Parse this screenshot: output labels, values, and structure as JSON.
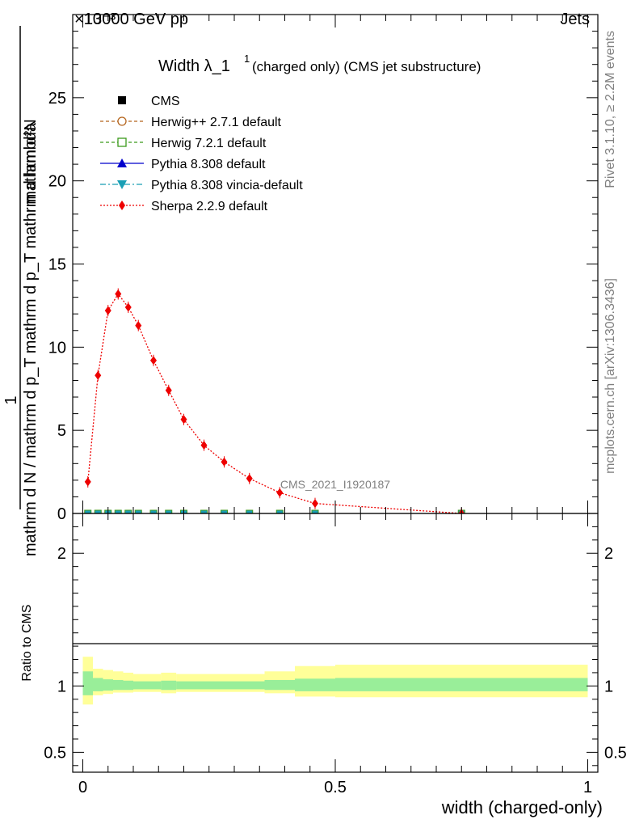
{
  "header": {
    "left": "13000 GeV pp",
    "right": "Jets",
    "exponent": "×10⁻³"
  },
  "side_text": {
    "rivet": "Rivet 3.1.10, ≥ 2.2M events",
    "mcplots": "mcplots.cern.ch [arXiv:1306.3436]"
  },
  "watermark": "CMS_2021_I1920187",
  "chart_data": {
    "type": "line",
    "title": "Width λ_1",
    "title_sup": "1",
    "title_suffix": "(charged only) (CMS jet substructure)",
    "xlabel": "width (charged-only)",
    "ylabel": {
      "numerator": "mathrm d²N",
      "denominator": "mathrm d N / mathrm d p_T mathrm d p_T mathrm d lambda",
      "prefix": "1"
    },
    "ratio_ylabel": "Ratio to CMS",
    "xlim": [
      -0.02,
      1.02
    ],
    "ylim": [
      0,
      30
    ],
    "ratio_ylim": [
      0.35,
      2.3
    ],
    "x_ticks": [
      "0",
      "0.5",
      "1"
    ],
    "x_tick_values": [
      0,
      0.5,
      1
    ],
    "y_ticks": [
      "0",
      "5",
      "10",
      "15",
      "20",
      "25"
    ],
    "y_tick_values": [
      0,
      5,
      10,
      15,
      20,
      25
    ],
    "ratio_ticks": [
      "0.5",
      "1",
      "2"
    ],
    "ratio_tick_values": [
      0.5,
      1,
      2
    ],
    "legend": [
      {
        "name": "CMS",
        "color": "#000000",
        "marker": "square-filled",
        "line": "none"
      },
      {
        "name": "Herwig++ 2.7.1 default",
        "color": "#b5651d",
        "marker": "circle-open",
        "line": "dashed"
      },
      {
        "name": "Herwig 7.2.1 default",
        "color": "#3c9a1c",
        "marker": "square-open",
        "line": "dashed"
      },
      {
        "name": "Pythia 8.308 default",
        "color": "#0000cc",
        "marker": "triangle-up",
        "line": "solid"
      },
      {
        "name": "Pythia 8.308 vincia-default",
        "color": "#1a9fb5",
        "marker": "triangle-down",
        "line": "dashdot"
      },
      {
        "name": "Sherpa 2.2.9 default",
        "color": "#ee0000",
        "marker": "diamond",
        "line": "dotted"
      }
    ],
    "sherpa": {
      "x": [
        0.01,
        0.03,
        0.05,
        0.07,
        0.09,
        0.11,
        0.14,
        0.17,
        0.2,
        0.24,
        0.28,
        0.33,
        0.39,
        0.46,
        0.75
      ],
      "y": [
        1.9,
        8.3,
        12.2,
        13.2,
        12.4,
        11.3,
        9.2,
        7.4,
        5.65,
        4.1,
        3.1,
        2.1,
        1.25,
        0.6,
        0.0
      ]
    },
    "ratio_bands": {
      "edges": [
        0,
        0.02,
        0.04,
        0.06,
        0.08,
        0.1,
        0.12,
        0.155,
        0.185,
        0.22,
        0.26,
        0.3,
        0.36,
        0.42,
        0.5,
        1.0
      ],
      "inner_lo": [
        0.93,
        0.96,
        0.965,
        0.97,
        0.97,
        0.975,
        0.975,
        0.97,
        0.975,
        0.975,
        0.975,
        0.975,
        0.97,
        0.96,
        0.96
      ],
      "inner_hi": [
        1.11,
        1.06,
        1.05,
        1.045,
        1.04,
        1.035,
        1.035,
        1.04,
        1.035,
        1.035,
        1.035,
        1.035,
        1.045,
        1.055,
        1.06
      ],
      "outer_lo": [
        0.86,
        0.93,
        0.94,
        0.95,
        0.95,
        0.955,
        0.955,
        0.945,
        0.955,
        0.955,
        0.955,
        0.955,
        0.945,
        0.92,
        0.915
      ],
      "outer_hi": [
        1.22,
        1.13,
        1.12,
        1.11,
        1.1,
        1.09,
        1.09,
        1.1,
        1.09,
        1.09,
        1.09,
        1.09,
        1.11,
        1.15,
        1.16
      ]
    },
    "mc_markers_x": [
      0.01,
      0.03,
      0.05,
      0.07,
      0.09,
      0.11,
      0.14,
      0.17,
      0.2,
      0.24,
      0.28,
      0.33,
      0.39,
      0.46,
      0.75
    ]
  }
}
